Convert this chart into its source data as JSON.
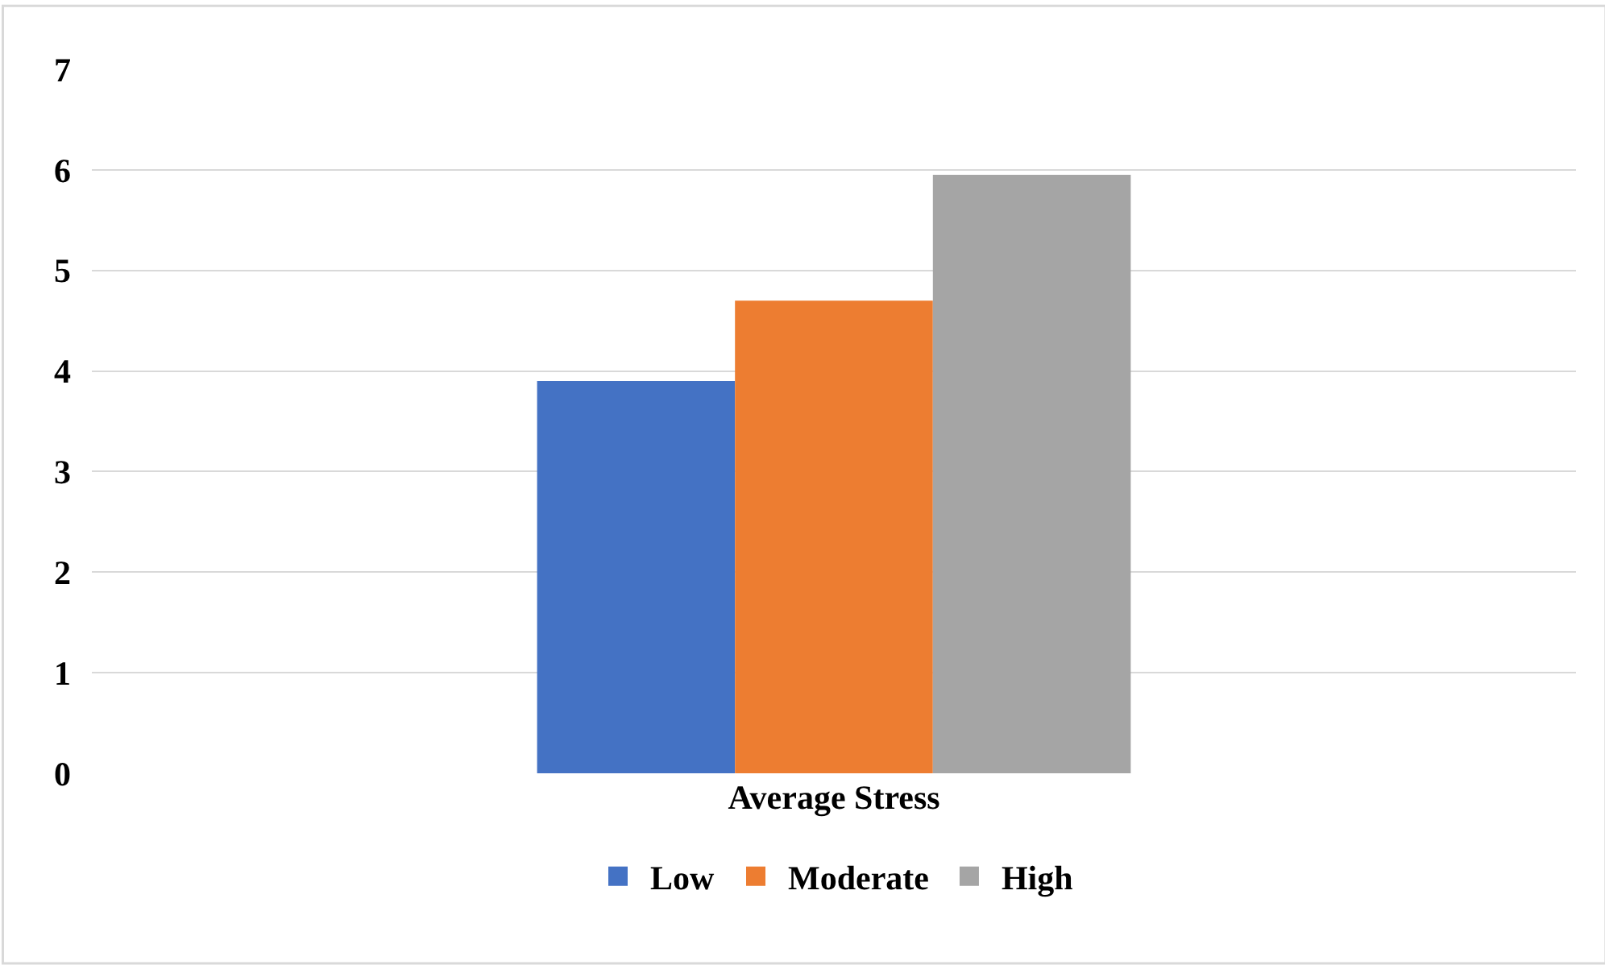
{
  "chart_data": {
    "type": "bar",
    "categories": [
      "Average Stress"
    ],
    "series": [
      {
        "name": "Low",
        "color": "#4472c4",
        "values": [
          3.9
        ]
      },
      {
        "name": "Moderate",
        "color": "#ed7d31",
        "values": [
          4.7
        ]
      },
      {
        "name": "High",
        "color": "#a5a5a5",
        "values": [
          5.95
        ]
      }
    ],
    "ylim": [
      0,
      7
    ],
    "yticks": [
      0,
      1,
      2,
      3,
      4,
      5,
      6,
      7
    ],
    "grid": "y",
    "legend": "bottom"
  }
}
